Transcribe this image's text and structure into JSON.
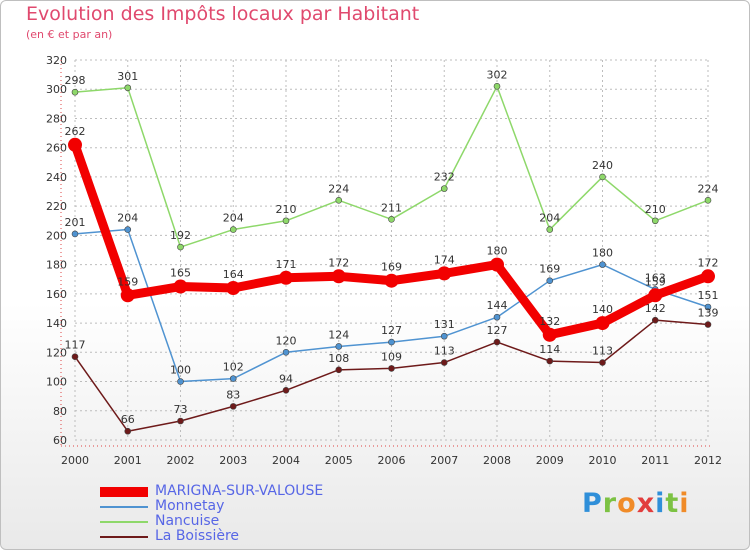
{
  "title": "Evolution des Impôts locaux par Habitant",
  "subtitle": "(en € et par an)",
  "logo": {
    "text": "Proxiti",
    "colors": [
      "#2f8fd9",
      "#7cc243",
      "#f08b28",
      "#e23d3d",
      "#2f8fd9",
      "#7cc243",
      "#f08b28"
    ]
  },
  "chart_data": {
    "type": "line",
    "x": [
      "2000",
      "2001",
      "2002",
      "2003",
      "2004",
      "2005",
      "2006",
      "2007",
      "2008",
      "2009",
      "2010",
      "2011",
      "2012"
    ],
    "ylim": [
      60,
      320
    ],
    "yticks": [
      "60",
      "80",
      "100",
      "120",
      "140",
      "160",
      "180",
      "200",
      "220",
      "240",
      "260",
      "280",
      "300",
      "320"
    ],
    "grid": true,
    "legend_placement": "bottom-left",
    "series": [
      {
        "name": "Nancuise",
        "color": "#8ed86a",
        "values": [
          298,
          301,
          192,
          204,
          210,
          224,
          211,
          232,
          302,
          204,
          240,
          210,
          224
        ],
        "labels": [
          "298",
          "301",
          "192",
          "204",
          "210",
          "224",
          "211",
          "232",
          "302",
          "204",
          "240",
          "210",
          "224"
        ]
      },
      {
        "name": "Monnetay",
        "color": "#4f93d1",
        "values": [
          201,
          204,
          100,
          102,
          120,
          124,
          127,
          131,
          144,
          169,
          180,
          163,
          151
        ],
        "labels": [
          "201",
          "204",
          "100",
          "102",
          "120",
          "124",
          "127",
          "131",
          "144",
          "169",
          "180",
          "163",
          "151"
        ]
      },
      {
        "name": "La Boissière",
        "color": "#6e1a1a",
        "values": [
          117,
          66,
          73,
          83,
          94,
          108,
          109,
          113,
          127,
          114,
          113,
          142,
          139
        ],
        "labels": [
          "117",
          "66",
          "73",
          "83",
          "94",
          "108",
          "109",
          "113",
          "127",
          "114",
          "113",
          "142",
          "139"
        ]
      },
      {
        "name": "MARIGNA-SUR-VALOUSE",
        "color": "#f20000",
        "values": [
          262,
          159,
          165,
          164,
          171,
          172,
          169,
          174,
          180,
          132,
          140,
          159,
          172
        ],
        "labels": [
          "262",
          "159",
          "165",
          "164",
          "171",
          "172",
          "169",
          "174",
          "180",
          "132",
          "140",
          "159",
          "172"
        ]
      }
    ],
    "legend": [
      "MARIGNA-SUR-VALOUSE",
      "Monnetay",
      "Nancuise",
      "La Boissière"
    ]
  }
}
